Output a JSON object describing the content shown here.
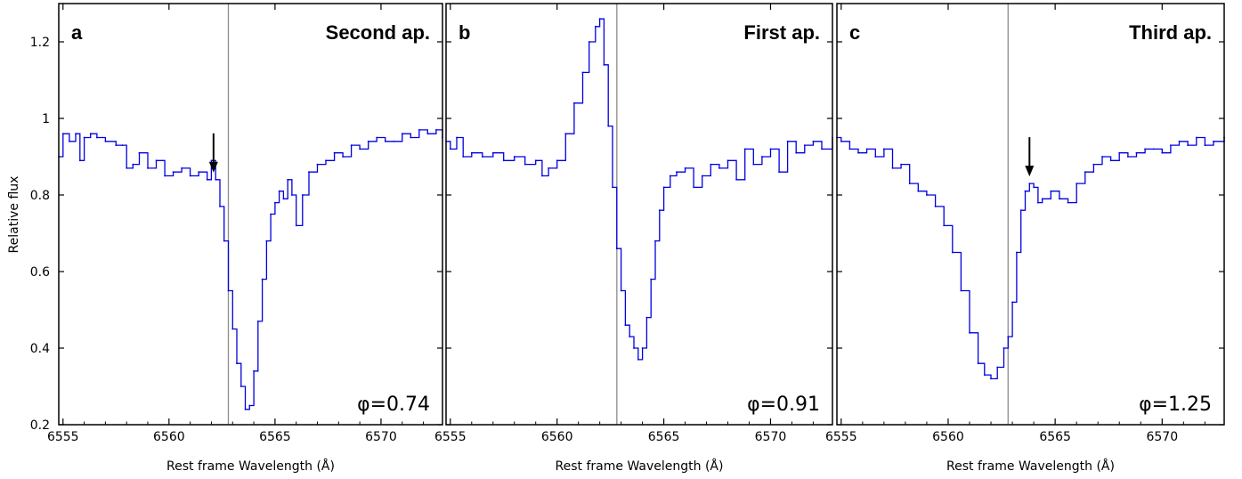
{
  "figure": {
    "ylabel": "Relative flux"
  },
  "chart_data": [
    {
      "type": "line",
      "panel_letter": "a",
      "title": "Second ap.",
      "phase_label": "φ=0.74",
      "xlabel": "Rest frame Wavelength (Å)",
      "ylabel": "Relative flux",
      "xlim": [
        6554.8,
        6572.9
      ],
      "ylim": [
        0.2,
        1.3
      ],
      "xticks": [
        6555,
        6560,
        6565,
        6570
      ],
      "yticks": [
        0.2,
        0.4,
        0.6,
        0.8,
        1,
        1.2
      ],
      "grid": false,
      "reference_line_x": 6562.8,
      "arrow_x": 6562.1,
      "series_color": "#0000e0",
      "x": [
        6554.8,
        6555.0,
        6555.3,
        6555.6,
        6555.8,
        6556.0,
        6556.3,
        6556.6,
        6557.0,
        6557.5,
        6557.8,
        6558.0,
        6558.3,
        6558.6,
        6559.0,
        6559.4,
        6559.8,
        6560.2,
        6560.6,
        6561.0,
        6561.4,
        6561.8,
        6562.0,
        6562.2,
        6562.4,
        6562.6,
        6562.8,
        6563.0,
        6563.2,
        6563.4,
        6563.6,
        6563.8,
        6564.0,
        6564.2,
        6564.4,
        6564.6,
        6564.8,
        6565.0,
        6565.2,
        6565.4,
        6565.6,
        6565.8,
        6566.0,
        6566.3,
        6566.6,
        6567.0,
        6567.4,
        6567.8,
        6568.2,
        6568.6,
        6569.0,
        6569.4,
        6569.8,
        6570.2,
        6570.6,
        6571.0,
        6571.4,
        6571.8,
        6572.2,
        6572.6,
        6572.9
      ],
      "values": [
        0.9,
        0.96,
        0.94,
        0.96,
        0.89,
        0.95,
        0.96,
        0.95,
        0.94,
        0.93,
        0.93,
        0.87,
        0.88,
        0.91,
        0.87,
        0.89,
        0.85,
        0.86,
        0.87,
        0.85,
        0.86,
        0.84,
        0.89,
        0.84,
        0.77,
        0.68,
        0.55,
        0.45,
        0.36,
        0.3,
        0.24,
        0.25,
        0.34,
        0.47,
        0.58,
        0.68,
        0.75,
        0.78,
        0.81,
        0.79,
        0.84,
        0.8,
        0.72,
        0.8,
        0.86,
        0.88,
        0.89,
        0.91,
        0.9,
        0.93,
        0.92,
        0.94,
        0.95,
        0.94,
        0.94,
        0.96,
        0.95,
        0.97,
        0.96,
        0.97,
        0.95
      ]
    },
    {
      "type": "line",
      "panel_letter": "b",
      "title": "First ap.",
      "phase_label": "φ=0.91",
      "xlabel": "Rest frame Wavelength (Å)",
      "ylabel": "",
      "xlim": [
        6554.8,
        6572.9
      ],
      "ylim": [
        0.2,
        1.3
      ],
      "xticks": [
        6555,
        6560,
        6565,
        6570
      ],
      "yticks": [],
      "grid": false,
      "reference_line_x": 6562.8,
      "series_color": "#0000e0",
      "x": [
        6554.8,
        6555.0,
        6555.3,
        6555.6,
        6556.0,
        6556.5,
        6557.0,
        6557.5,
        6558.0,
        6558.5,
        6559.0,
        6559.3,
        6559.6,
        6560.0,
        6560.4,
        6560.8,
        6561.2,
        6561.5,
        6561.8,
        6562.0,
        6562.2,
        6562.4,
        6562.6,
        6562.8,
        6563.0,
        6563.2,
        6563.4,
        6563.6,
        6563.8,
        6564.0,
        6564.2,
        6564.4,
        6564.6,
        6564.8,
        6565.0,
        6565.3,
        6565.6,
        6566.0,
        6566.4,
        6566.8,
        6567.2,
        6567.6,
        6568.0,
        6568.4,
        6568.8,
        6569.2,
        6569.6,
        6570.0,
        6570.4,
        6570.8,
        6571.2,
        6571.6,
        6572.0,
        6572.4,
        6572.9
      ],
      "values": [
        0.94,
        0.92,
        0.95,
        0.9,
        0.91,
        0.9,
        0.91,
        0.89,
        0.9,
        0.88,
        0.89,
        0.85,
        0.87,
        0.89,
        0.96,
        1.04,
        1.12,
        1.2,
        1.24,
        1.26,
        1.14,
        0.98,
        0.82,
        0.66,
        0.55,
        0.46,
        0.43,
        0.4,
        0.37,
        0.4,
        0.48,
        0.58,
        0.68,
        0.76,
        0.82,
        0.85,
        0.86,
        0.87,
        0.82,
        0.85,
        0.88,
        0.87,
        0.89,
        0.84,
        0.92,
        0.88,
        0.9,
        0.92,
        0.86,
        0.94,
        0.91,
        0.93,
        0.94,
        0.92,
        0.95
      ]
    },
    {
      "type": "line",
      "panel_letter": "c",
      "title": "Third ap.",
      "phase_label": "φ=1.25",
      "xlabel": "Rest frame Wavelength (Å)",
      "ylabel": "",
      "xlim": [
        6554.8,
        6572.9
      ],
      "ylim": [
        0.2,
        1.3
      ],
      "xticks": [
        6555,
        6560,
        6565,
        6570
      ],
      "yticks": [],
      "grid": false,
      "reference_line_x": 6562.8,
      "arrow_x": 6563.8,
      "series_color": "#0000e0",
      "x": [
        6554.8,
        6555.0,
        6555.4,
        6555.8,
        6556.2,
        6556.6,
        6557.0,
        6557.4,
        6557.8,
        6558.2,
        6558.6,
        6559.0,
        6559.4,
        6559.8,
        6560.2,
        6560.6,
        6561.0,
        6561.4,
        6561.7,
        6562.0,
        6562.3,
        6562.6,
        6562.8,
        6563.0,
        6563.2,
        6563.4,
        6563.6,
        6563.8,
        6564.0,
        6564.2,
        6564.4,
        6564.8,
        6565.2,
        6565.6,
        6566.0,
        6566.4,
        6566.8,
        6567.2,
        6567.6,
        6568.0,
        6568.4,
        6568.8,
        6569.2,
        6569.6,
        6570.0,
        6570.4,
        6570.8,
        6571.2,
        6571.6,
        6572.0,
        6572.4,
        6572.9
      ],
      "values": [
        0.95,
        0.94,
        0.92,
        0.91,
        0.92,
        0.9,
        0.92,
        0.87,
        0.88,
        0.83,
        0.81,
        0.8,
        0.77,
        0.72,
        0.65,
        0.55,
        0.44,
        0.36,
        0.33,
        0.32,
        0.35,
        0.4,
        0.43,
        0.52,
        0.65,
        0.76,
        0.81,
        0.83,
        0.82,
        0.78,
        0.79,
        0.81,
        0.79,
        0.78,
        0.83,
        0.86,
        0.88,
        0.9,
        0.89,
        0.91,
        0.9,
        0.91,
        0.92,
        0.92,
        0.91,
        0.93,
        0.94,
        0.93,
        0.95,
        0.93,
        0.94,
        0.95
      ]
    }
  ]
}
